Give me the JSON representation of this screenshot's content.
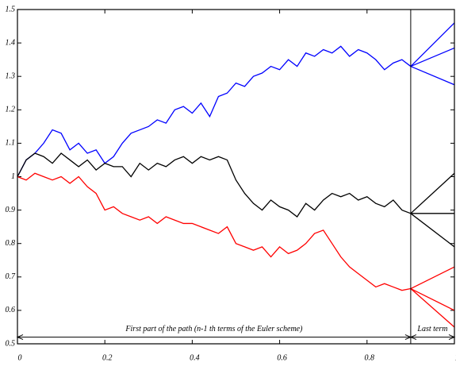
{
  "chart_data": {
    "type": "line",
    "x": [
      0,
      0.02,
      0.04,
      0.06,
      0.08,
      0.1,
      0.12,
      0.14,
      0.16,
      0.18,
      0.2,
      0.22,
      0.24,
      0.26,
      0.28,
      0.3,
      0.32,
      0.34,
      0.36,
      0.38,
      0.4,
      0.42,
      0.44,
      0.46,
      0.48,
      0.5,
      0.52,
      0.54,
      0.56,
      0.58,
      0.6,
      0.62,
      0.64,
      0.66,
      0.68,
      0.7,
      0.72,
      0.74,
      0.76,
      0.78,
      0.8,
      0.82,
      0.84,
      0.86,
      0.88,
      0.9
    ],
    "series": [
      {
        "color": "#0000ff",
        "values": [
          1.0,
          1.05,
          1.07,
          1.1,
          1.14,
          1.13,
          1.08,
          1.1,
          1.07,
          1.08,
          1.04,
          1.06,
          1.1,
          1.13,
          1.14,
          1.15,
          1.17,
          1.16,
          1.2,
          1.21,
          1.19,
          1.22,
          1.18,
          1.24,
          1.25,
          1.28,
          1.27,
          1.3,
          1.31,
          1.33,
          1.32,
          1.35,
          1.33,
          1.37,
          1.36,
          1.38,
          1.37,
          1.39,
          1.36,
          1.38,
          1.37,
          1.35,
          1.32,
          1.34,
          1.35,
          1.33
        ]
      },
      {
        "color": "#000000",
        "values": [
          1.0,
          1.05,
          1.07,
          1.06,
          1.04,
          1.07,
          1.05,
          1.03,
          1.05,
          1.02,
          1.04,
          1.03,
          1.03,
          1.0,
          1.04,
          1.02,
          1.04,
          1.03,
          1.05,
          1.06,
          1.04,
          1.06,
          1.05,
          1.06,
          1.05,
          0.99,
          0.95,
          0.92,
          0.9,
          0.93,
          0.91,
          0.9,
          0.88,
          0.92,
          0.9,
          0.93,
          0.95,
          0.94,
          0.95,
          0.93,
          0.94,
          0.92,
          0.91,
          0.93,
          0.9,
          0.89
        ]
      },
      {
        "color": "#ff0000",
        "values": [
          1.0,
          0.99,
          1.01,
          1.0,
          0.99,
          1.0,
          0.98,
          1.0,
          0.97,
          0.95,
          0.9,
          0.91,
          0.89,
          0.88,
          0.87,
          0.88,
          0.86,
          0.88,
          0.87,
          0.86,
          0.86,
          0.85,
          0.84,
          0.83,
          0.85,
          0.8,
          0.79,
          0.78,
          0.79,
          0.76,
          0.79,
          0.77,
          0.78,
          0.8,
          0.83,
          0.84,
          0.8,
          0.76,
          0.73,
          0.71,
          0.69,
          0.67,
          0.68,
          0.67,
          0.66,
          0.665
        ]
      },
      {
        "color": "#0000ff",
        "x": [
          0.9,
          1
        ],
        "values": [
          1.33,
          1.46
        ]
      },
      {
        "color": "#0000ff",
        "x": [
          0.9,
          1
        ],
        "values": [
          1.33,
          1.385
        ]
      },
      {
        "color": "#0000ff",
        "x": [
          0.9,
          1
        ],
        "values": [
          1.33,
          1.275
        ]
      },
      {
        "color": "#000000",
        "x": [
          0.9,
          1
        ],
        "values": [
          0.89,
          1.01
        ]
      },
      {
        "color": "#000000",
        "x": [
          0.9,
          1
        ],
        "values": [
          0.89,
          0.89
        ]
      },
      {
        "color": "#000000",
        "x": [
          0.9,
          1
        ],
        "values": [
          0.89,
          0.79
        ]
      },
      {
        "color": "#ff0000",
        "x": [
          0.9,
          1
        ],
        "values": [
          0.665,
          0.73
        ]
      },
      {
        "color": "#ff0000",
        "x": [
          0.9,
          1
        ],
        "values": [
          0.665,
          0.6
        ]
      },
      {
        "color": "#ff0000",
        "x": [
          0.9,
          1
        ],
        "values": [
          0.665,
          0.55
        ]
      }
    ],
    "xlim": [
      0,
      1
    ],
    "ylim": [
      0.5,
      1.5
    ],
    "xticks": [
      0,
      0.2,
      0.4,
      0.6,
      0.8,
      1
    ],
    "yticks": [
      0.5,
      0.6,
      0.7,
      0.8,
      0.9,
      1,
      1.1,
      1.2,
      1.3,
      1.4,
      1.5
    ],
    "divider_x": 0.9,
    "annotations": [
      {
        "text": "First part of the path (n-1 th terms of the Euler scheme)",
        "x": [
          0,
          0.9
        ],
        "y": 0.52
      },
      {
        "text": "Last term",
        "x": [
          0.9,
          1
        ],
        "y": 0.52
      }
    ]
  }
}
